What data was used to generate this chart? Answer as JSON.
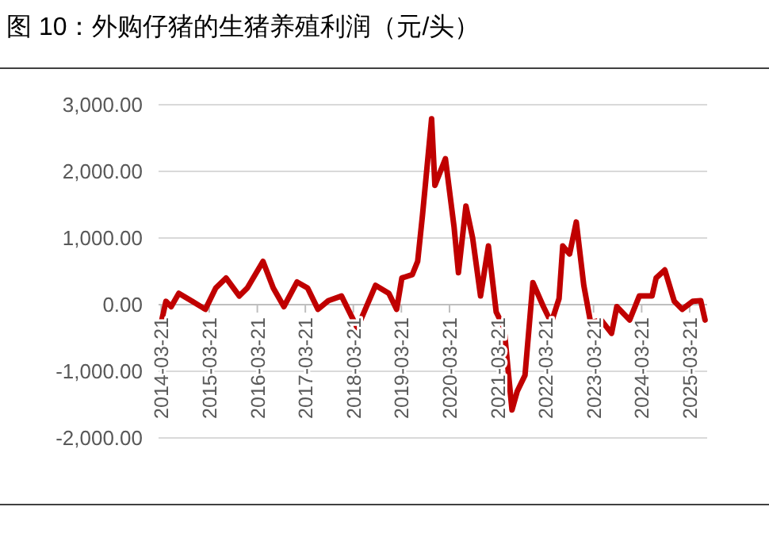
{
  "chart_data": {
    "type": "line",
    "title": "图 10：外购仔猪的生猪养殖利润（元/头）",
    "grid": "y",
    "marker": "none",
    "line_style": "solid",
    "ylim": [
      -2000,
      3000
    ],
    "yticks": [
      {
        "value": -2000,
        "label": "-2,000.00"
      },
      {
        "value": -1000,
        "label": "-1,000.00"
      },
      {
        "value": 0,
        "label": "0.00"
      },
      {
        "value": 1000,
        "label": "1,000.00"
      },
      {
        "value": 2000,
        "label": "2,000.00"
      },
      {
        "value": 3000,
        "label": "3,000.00"
      }
    ],
    "xlim": [
      "2014-03-01",
      "2025-08-01"
    ],
    "xticks": [
      {
        "value": "2014-03-21",
        "label": "2014-03-21"
      },
      {
        "value": "2015-03-21",
        "label": "2015-03-21"
      },
      {
        "value": "2016-03-21",
        "label": "2016-03-21"
      },
      {
        "value": "2017-03-21",
        "label": "2017-03-21"
      },
      {
        "value": "2018-03-21",
        "label": "2018-03-21"
      },
      {
        "value": "2019-03-21",
        "label": "2019-03-21"
      },
      {
        "value": "2020-03-21",
        "label": "2020-03-21"
      },
      {
        "value": "2021-03-21",
        "label": "2021-03-21"
      },
      {
        "value": "2022-03-21",
        "label": "2022-03-21"
      },
      {
        "value": "2023-03-21",
        "label": "2023-03-21"
      },
      {
        "value": "2024-03-21",
        "label": "2024-03-21"
      },
      {
        "value": "2025-03-21",
        "label": "2025-03-21"
      }
    ],
    "x": [
      "2014-03-21",
      "2014-04-26",
      "2014-06-05",
      "2014-08-02",
      "2014-11-12",
      "2015-02-20",
      "2015-05-10",
      "2015-07-27",
      "2015-11-05",
      "2016-01-05",
      "2016-05-03",
      "2016-07-20",
      "2016-10-09",
      "2017-01-17",
      "2017-04-07",
      "2017-06-25",
      "2017-09-12",
      "2017-12-21",
      "2018-04-20",
      "2018-09-06",
      "2018-12-16",
      "2019-02-13",
      "2019-03-25",
      "2019-06-12",
      "2019-07-23",
      "2019-08-29",
      "2019-11-06",
      "2019-12-01",
      "2020-02-19",
      "2020-04-25",
      "2020-05-28",
      "2020-07-24",
      "2020-09-13",
      "2020-11-12",
      "2021-01-11",
      "2021-03-11",
      "2021-05-10",
      "2021-07-09",
      "2021-08-18",
      "2021-10-16",
      "2021-12-15",
      "2022-03-05",
      "2022-05-04",
      "2022-07-02",
      "2022-07-30",
      "2022-09-20",
      "2022-11-10",
      "2023-01-06",
      "2023-02-27",
      "2023-05-18",
      "2023-08-05",
      "2023-09-14",
      "2023-12-21",
      "2024-03-03",
      "2024-06-08",
      "2024-07-09",
      "2024-09-13",
      "2024-11-24",
      "2025-01-23",
      "2025-04-13",
      "2025-06-13",
      "2025-07-16"
    ],
    "series": [
      {
        "color": "#c00000",
        "values": [
          -270,
          50,
          -30,
          170,
          50,
          -70,
          250,
          400,
          130,
          250,
          650,
          250,
          -30,
          340,
          250,
          -70,
          60,
          130,
          -350,
          290,
          170,
          -70,
          400,
          450,
          650,
          1350,
          2790,
          1790,
          2190,
          1160,
          480,
          1480,
          1000,
          130,
          880,
          -110,
          -350,
          -1580,
          -1300,
          -1060,
          330,
          -30,
          -270,
          90,
          880,
          760,
          1240,
          290,
          -270,
          -230,
          -430,
          -30,
          -230,
          130,
          130,
          400,
          520,
          50,
          -70,
          50,
          60,
          -230
        ]
      }
    ]
  }
}
